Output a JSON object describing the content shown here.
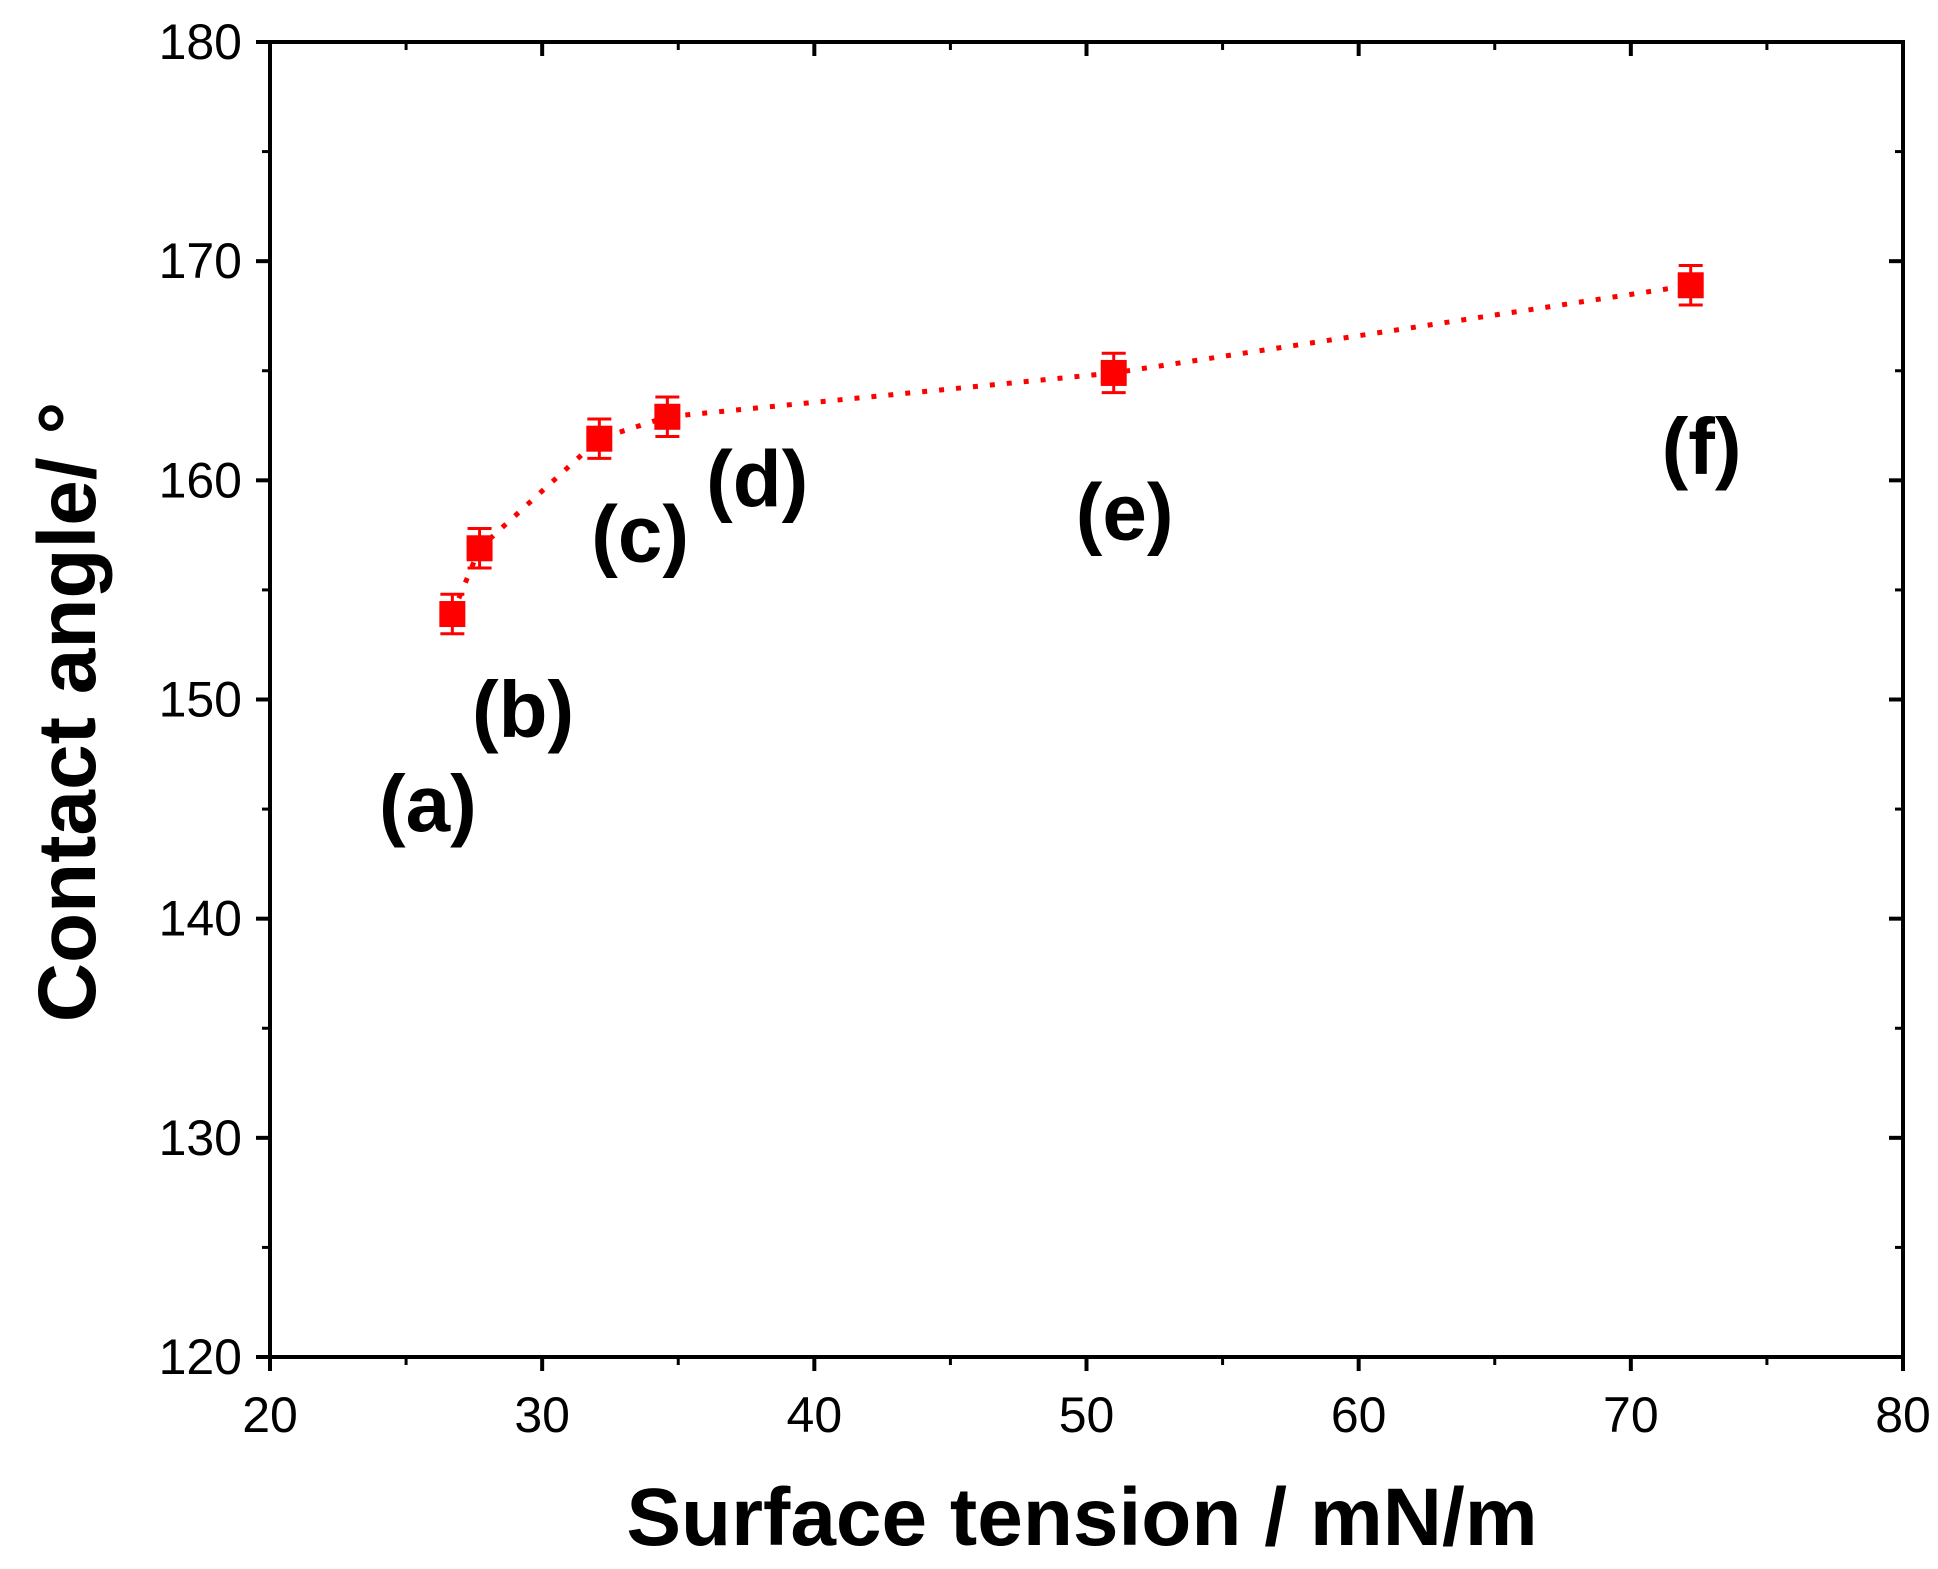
{
  "chart_data": {
    "type": "scatter",
    "title": "",
    "xlabel": "Surface tension / mN/m",
    "ylabel": "Contact angle/ °",
    "xlim": [
      20,
      80
    ],
    "ylim": [
      120,
      180
    ],
    "xticks": [
      20,
      30,
      40,
      50,
      60,
      70,
      80
    ],
    "yticks": [
      120,
      130,
      140,
      150,
      160,
      170,
      180
    ],
    "x_minor_step": 5,
    "y_minor_step": 5,
    "grid": false,
    "series": [
      {
        "name": "Contact angle",
        "color": "#ff0000",
        "marker": "square",
        "line": "dotted",
        "points": [
          {
            "x": 26.7,
            "y": 153.9,
            "err": 0.9,
            "label": "(a)"
          },
          {
            "x": 27.7,
            "y": 156.9,
            "err": 0.9,
            "label": "(b)"
          },
          {
            "x": 32.1,
            "y": 161.9,
            "err": 0.9,
            "label": "(c)"
          },
          {
            "x": 34.6,
            "y": 162.9,
            "err": 0.9,
            "label": "(d)"
          },
          {
            "x": 51.0,
            "y": 164.9,
            "err": 0.9,
            "label": "(e)"
          },
          {
            "x": 72.2,
            "y": 168.9,
            "err": 0.9,
            "label": "(f)"
          }
        ]
      }
    ],
    "annotations": [
      {
        "text": "(a)",
        "x": 25.8,
        "y": 144.0
      },
      {
        "text": "(b)",
        "x": 29.3,
        "y": 148.3
      },
      {
        "text": "(c)",
        "x": 33.6,
        "y": 156.3
      },
      {
        "text": "(d)",
        "x": 37.9,
        "y": 158.8
      },
      {
        "text": "(e)",
        "x": 51.4,
        "y": 157.3
      },
      {
        "text": "(f)",
        "x": 72.6,
        "y": 160.3
      }
    ]
  }
}
